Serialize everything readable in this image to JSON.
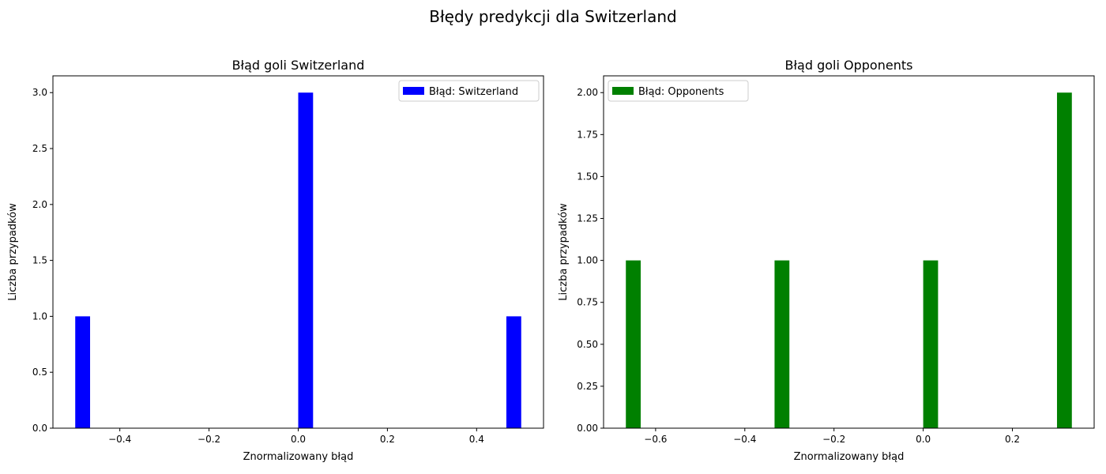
{
  "figure": {
    "suptitle": "Błędy predykcji dla Switzerland"
  },
  "chart_data": [
    {
      "type": "bar",
      "title": "Błąd goli Switzerland",
      "xlabel": "Znormalizowany błąd",
      "ylabel": "Liczba przypadków",
      "xlim": [
        -0.55,
        0.55
      ],
      "ylim": [
        0,
        3.15
      ],
      "xticks": [
        -0.4,
        -0.2,
        0.0,
        0.2,
        0.4
      ],
      "xtick_labels": [
        "−0.4",
        "−0.2",
        "0.0",
        "0.2",
        "0.4"
      ],
      "yticks": [
        0,
        0.5,
        1.0,
        1.5,
        2.0,
        2.5,
        3.0
      ],
      "ytick_labels": [
        "0.0",
        "0.5",
        "1.0",
        "1.5",
        "2.0",
        "2.5",
        "3.0"
      ],
      "bar_width": 0.0333,
      "bars": [
        {
          "x": -0.5,
          "value": 1
        },
        {
          "x": 0.0,
          "value": 3
        },
        {
          "x": 0.4667,
          "value": 1
        }
      ],
      "color": "#0000ff",
      "legend": {
        "label": "Błąd: Switzerland",
        "placement": "top-right"
      },
      "grid": false
    },
    {
      "type": "bar",
      "title": "Błąd goli Opponents",
      "xlabel": "Znormalizowany błąd",
      "ylabel": "Liczba przypadków",
      "xlim": [
        -0.7167,
        0.3833
      ],
      "ylim": [
        0,
        2.1
      ],
      "xticks": [
        -0.6,
        -0.4,
        -0.2,
        0.0,
        0.2
      ],
      "xtick_labels": [
        "−0.6",
        "−0.4",
        "−0.2",
        "0.0",
        "0.2"
      ],
      "yticks": [
        0,
        0.25,
        0.5,
        0.75,
        1.0,
        1.25,
        1.5,
        1.75,
        2.0
      ],
      "ytick_labels": [
        "0.00",
        "0.25",
        "0.50",
        "0.75",
        "1.00",
        "1.25",
        "1.50",
        "1.75",
        "2.00"
      ],
      "bar_width": 0.0333,
      "bars": [
        {
          "x": -0.6667,
          "value": 1
        },
        {
          "x": -0.3333,
          "value": 1
        },
        {
          "x": 0.0,
          "value": 1
        },
        {
          "x": 0.3,
          "value": 2
        }
      ],
      "color": "#008000",
      "legend": {
        "label": "Błąd: Opponents",
        "placement": "top-left"
      },
      "grid": false
    }
  ]
}
